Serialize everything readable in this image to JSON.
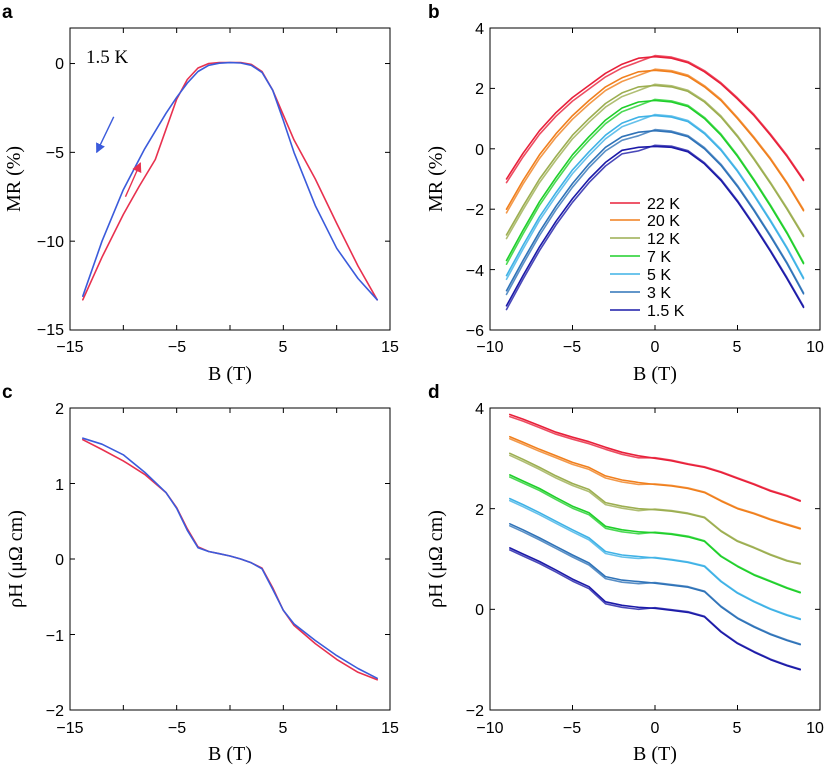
{
  "colors": {
    "sweep_up": "#e8314f",
    "sweep_down": "#3b5bdb",
    "22 K": "#e8203a",
    "20 K": "#f07f1d",
    "12 K": "#9cae50",
    "7 K": "#1fcf2a",
    "5 K": "#3fb2e6",
    "3 K": "#2f73b8",
    "1.5 K": "#1c1aa8"
  },
  "chart_data": [
    {
      "id": "a",
      "type": "line",
      "panel_letter": "a",
      "annotation": "1.5 K",
      "xlabel": "B (T)",
      "ylabel": "MR (%)",
      "xlim": [
        -15,
        15
      ],
      "ylim": [
        -15,
        2
      ],
      "xticks": [
        "−15",
        "−5",
        "5",
        "15"
      ],
      "yticks": [
        "0",
        "−5",
        "−10",
        "−15"
      ],
      "arrows": [
        {
          "color_key": "sweep_down",
          "from": [
            -10.9,
            -3.0
          ],
          "to": [
            -12.5,
            -5.0
          ]
        },
        {
          "color_key": "sweep_up",
          "from": [
            -9.8,
            -7.5
          ],
          "to": [
            -8.4,
            -5.6
          ]
        }
      ],
      "series": [
        {
          "name": "up",
          "color_key": "sweep_up",
          "x": [
            -13.8,
            -12,
            -10,
            -8.5,
            -7,
            -6,
            -5,
            -4,
            -3,
            -2,
            -1,
            0,
            1,
            2,
            3,
            4,
            5,
            6,
            8,
            10,
            12,
            13.8
          ],
          "y": [
            -13.3,
            -10.9,
            -8.5,
            -6.9,
            -5.4,
            -3.7,
            -2.0,
            -0.9,
            -0.25,
            0,
            0.05,
            0.05,
            0.05,
            -0.05,
            -0.45,
            -1.5,
            -2.9,
            -4.3,
            -6.5,
            -9.0,
            -11.4,
            -13.3
          ]
        },
        {
          "name": "down",
          "color_key": "sweep_down",
          "x": [
            -13.8,
            -12,
            -10,
            -8,
            -6,
            -5,
            -4,
            -3,
            -2,
            -1,
            0,
            1,
            2,
            3,
            4,
            5,
            6,
            8,
            10,
            12,
            13.8
          ],
          "y": [
            -13.1,
            -10.0,
            -7.1,
            -4.8,
            -2.8,
            -1.9,
            -1.1,
            -0.45,
            -0.1,
            0.02,
            0.05,
            0.03,
            -0.1,
            -0.5,
            -1.5,
            -3.2,
            -5.0,
            -8.0,
            -10.4,
            -12.1,
            -13.3
          ]
        }
      ]
    },
    {
      "id": "b",
      "type": "line",
      "panel_letter": "b",
      "xlabel": "B (T)",
      "ylabel": "MR (%)",
      "xlim": [
        -10,
        10
      ],
      "ylim": [
        -6,
        4
      ],
      "xticks": [
        "−10",
        "−5",
        "0",
        "5",
        "10"
      ],
      "yticks": [
        "4",
        "2",
        "0",
        "−2",
        "−4",
        "−6"
      ],
      "legend": [
        "22  K",
        "20  K",
        "12  K",
        "7  K",
        "5  K",
        "3  K",
        "1.5 K"
      ],
      "legend_color_keys": [
        "22 K",
        "20 K",
        "12 K",
        "7 K",
        "5 K",
        "3 K",
        "1.5 K"
      ],
      "legend_location": "center-bottom",
      "x": [
        -9,
        -8,
        -7,
        -6,
        -5,
        -4,
        -3,
        -2,
        -1,
        0,
        1,
        2,
        3,
        4,
        5,
        6,
        7,
        8,
        9
      ],
      "series": [
        {
          "name": "22 K",
          "color_key": "22 K",
          "y": [
            -1.0,
            -0.15,
            0.6,
            1.2,
            1.7,
            2.1,
            2.5,
            2.8,
            3.0,
            3.05,
            3.0,
            2.85,
            2.55,
            2.15,
            1.65,
            1.1,
            0.45,
            -0.25,
            -1.05
          ]
        },
        {
          "name": "20 K",
          "color_key": "20 K",
          "y": [
            -2.0,
            -1.05,
            -0.2,
            0.5,
            1.1,
            1.6,
            2.05,
            2.35,
            2.55,
            2.6,
            2.55,
            2.4,
            2.05,
            1.6,
            1.0,
            0.35,
            -0.35,
            -1.15,
            -2.05
          ]
        },
        {
          "name": "12 K",
          "color_key": "12 K",
          "y": [
            -2.85,
            -1.9,
            -1.0,
            -0.25,
            0.45,
            1.0,
            1.5,
            1.85,
            2.05,
            2.1,
            2.05,
            1.9,
            1.55,
            1.05,
            0.4,
            -0.35,
            -1.15,
            -2.0,
            -2.9
          ]
        },
        {
          "name": "7 K",
          "color_key": "7 K",
          "y": [
            -3.7,
            -2.7,
            -1.75,
            -0.95,
            -0.2,
            0.4,
            0.95,
            1.35,
            1.55,
            1.6,
            1.55,
            1.4,
            1.0,
            0.45,
            -0.25,
            -1.05,
            -1.9,
            -2.8,
            -3.8
          ]
        },
        {
          "name": "5 K",
          "color_key": "5 K",
          "y": [
            -4.2,
            -3.2,
            -2.25,
            -1.45,
            -0.7,
            -0.1,
            0.45,
            0.85,
            1.05,
            1.1,
            1.05,
            0.9,
            0.5,
            -0.05,
            -0.75,
            -1.55,
            -2.4,
            -3.3,
            -4.3
          ]
        },
        {
          "name": "3 K",
          "color_key": "3 K",
          "y": [
            -4.7,
            -3.7,
            -2.75,
            -1.9,
            -1.15,
            -0.5,
            0.05,
            0.4,
            0.55,
            0.6,
            0.55,
            0.4,
            0.0,
            -0.55,
            -1.25,
            -2.05,
            -2.9,
            -3.8,
            -4.8
          ]
        },
        {
          "name": "1.5 K",
          "color_key": "1.5 K",
          "y": [
            -5.2,
            -4.2,
            -3.25,
            -2.4,
            -1.65,
            -1.0,
            -0.45,
            -0.05,
            0.05,
            0.08,
            0.05,
            -0.1,
            -0.5,
            -1.05,
            -1.75,
            -2.55,
            -3.4,
            -4.3,
            -5.25
          ]
        }
      ]
    },
    {
      "id": "c",
      "type": "line",
      "panel_letter": "c",
      "xlabel": "B (T)",
      "ylabel": "ρH (μΩ cm)",
      "xlim": [
        -15,
        15
      ],
      "ylim": [
        -2,
        2
      ],
      "xticks": [
        "−15",
        "−5",
        "5",
        "15"
      ],
      "yticks": [
        "2",
        "1",
        "0",
        "−1",
        "−2"
      ],
      "series": [
        {
          "name": "up",
          "color_key": "sweep_up",
          "x": [
            -13.8,
            -12,
            -10,
            -8,
            -6,
            -5,
            -4,
            -3,
            -2,
            -1,
            0,
            1,
            2,
            3,
            4,
            5,
            6,
            8,
            10,
            12,
            13.8
          ],
          "y": [
            1.58,
            1.45,
            1.3,
            1.12,
            0.88,
            0.68,
            0.4,
            0.16,
            0.1,
            0.07,
            0.04,
            0.0,
            -0.05,
            -0.12,
            -0.38,
            -0.68,
            -0.88,
            -1.12,
            -1.33,
            -1.5,
            -1.6
          ]
        },
        {
          "name": "down",
          "color_key": "sweep_down",
          "x": [
            -13.8,
            -12,
            -10,
            -8,
            -6,
            -5,
            -4,
            -3,
            -2,
            -1,
            0,
            1,
            2,
            3,
            4,
            5,
            6,
            8,
            10,
            12,
            13.8
          ],
          "y": [
            1.6,
            1.52,
            1.38,
            1.15,
            0.88,
            0.67,
            0.38,
            0.15,
            0.1,
            0.07,
            0.04,
            0.0,
            -0.05,
            -0.13,
            -0.4,
            -0.68,
            -0.86,
            -1.08,
            -1.28,
            -1.45,
            -1.58
          ]
        }
      ]
    },
    {
      "id": "d",
      "type": "line",
      "panel_letter": "d",
      "xlabel": "B (T)",
      "ylabel": "ρH (μΩ cm)",
      "xlim": [
        -10,
        10
      ],
      "ylim": [
        -2,
        4
      ],
      "xticks": [
        "−10",
        "−5",
        "0",
        "5",
        "10"
      ],
      "yticks": [
        "4",
        "2",
        "0",
        "−2"
      ],
      "x": [
        -8.8,
        -8,
        -7,
        -6,
        -5,
        -4,
        -3,
        -2,
        -1,
        0,
        1,
        2,
        3,
        4,
        5,
        6,
        7,
        8,
        8.8
      ],
      "series": [
        {
          "name": "22 K",
          "color_key": "22 K",
          "y": [
            3.87,
            3.78,
            3.65,
            3.52,
            3.42,
            3.33,
            3.22,
            3.12,
            3.05,
            3.0,
            2.95,
            2.88,
            2.82,
            2.72,
            2.6,
            2.48,
            2.35,
            2.25,
            2.15
          ]
        },
        {
          "name": "20 K",
          "color_key": "20 K",
          "y": [
            3.43,
            3.32,
            3.18,
            3.05,
            2.92,
            2.82,
            2.65,
            2.57,
            2.52,
            2.48,
            2.45,
            2.4,
            2.32,
            2.15,
            2.0,
            1.9,
            1.78,
            1.68,
            1.6
          ]
        },
        {
          "name": "12 K",
          "color_key": "12 K",
          "y": [
            3.1,
            2.98,
            2.82,
            2.65,
            2.5,
            2.38,
            2.12,
            2.05,
            2.0,
            1.98,
            1.95,
            1.9,
            1.82,
            1.55,
            1.35,
            1.22,
            1.08,
            0.96,
            0.9
          ]
        },
        {
          "name": "7 K",
          "color_key": "7 K",
          "y": [
            2.67,
            2.55,
            2.4,
            2.22,
            2.05,
            1.92,
            1.65,
            1.58,
            1.54,
            1.52,
            1.49,
            1.44,
            1.35,
            1.05,
            0.85,
            0.68,
            0.55,
            0.42,
            0.33
          ]
        },
        {
          "name": "5 K",
          "color_key": "5 K",
          "y": [
            2.2,
            2.08,
            1.92,
            1.75,
            1.58,
            1.42,
            1.15,
            1.08,
            1.05,
            1.02,
            0.98,
            0.93,
            0.85,
            0.55,
            0.32,
            0.15,
            0.0,
            -0.12,
            -0.2
          ]
        },
        {
          "name": "3 K",
          "color_key": "3 K",
          "y": [
            1.7,
            1.58,
            1.42,
            1.25,
            1.08,
            0.92,
            0.65,
            0.58,
            0.55,
            0.52,
            0.48,
            0.44,
            0.35,
            0.05,
            -0.18,
            -0.35,
            -0.5,
            -0.62,
            -0.7
          ]
        },
        {
          "name": "1.5 K",
          "color_key": "1.5 K",
          "y": [
            1.22,
            1.1,
            0.95,
            0.78,
            0.6,
            0.45,
            0.15,
            0.08,
            0.04,
            0.02,
            -0.02,
            -0.06,
            -0.15,
            -0.45,
            -0.68,
            -0.85,
            -1.0,
            -1.12,
            -1.2
          ]
        }
      ]
    }
  ]
}
